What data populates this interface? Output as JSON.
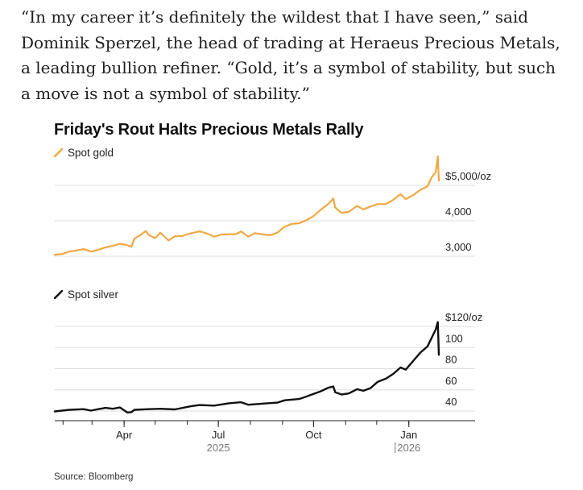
{
  "quote_text": "“In my career it’s definitely the wildest that I have seen,” said Dominik Sperzel, the head of trading at Heraeus Precious Metals, a leading bullion refiner. “Gold, it’s a symbol of stability, but such a move is not a symbol of stability.”",
  "source": "Source: Bloomberg",
  "colors": {
    "gold": "#f0a843",
    "silver": "#111111",
    "grid": "#dddddd"
  },
  "chart_data": {
    "type": "line",
    "title": "Friday's Rout Halts Precious Metals Rally",
    "x_start": "2025-01-24",
    "x_end": "2026-01-30",
    "x_ticks": [
      {
        "date": "2025-04-01",
        "label": "Apr"
      },
      {
        "date": "2025-07-01",
        "label": "Jul"
      },
      {
        "date": "2025-10-01",
        "label": "Oct"
      },
      {
        "date": "2026-01-01",
        "label": "Jan"
      }
    ],
    "year_labels": [
      {
        "date": "2025-07-01",
        "label": "2025"
      },
      {
        "date": "2026-01-01",
        "label": "2026"
      }
    ],
    "panels": [
      {
        "name": "Spot gold",
        "legend": "Spot gold",
        "color": "#f0a843",
        "ylim": [
          2700,
          5200
        ],
        "y_ticks": [
          {
            "value": 5000,
            "label": "$5,000/oz"
          },
          {
            "value": 4000,
            "label": "4,000"
          },
          {
            "value": 3000,
            "label": "3,000"
          }
        ],
        "series": [
          [
            "2025-01-24",
            2770
          ],
          [
            "2025-01-31",
            2790
          ],
          [
            "2025-02-07",
            2860
          ],
          [
            "2025-02-14",
            2890
          ],
          [
            "2025-02-21",
            2930
          ],
          [
            "2025-02-28",
            2860
          ],
          [
            "2025-03-07",
            2910
          ],
          [
            "2025-03-14",
            2980
          ],
          [
            "2025-03-21",
            3020
          ],
          [
            "2025-03-28",
            3080
          ],
          [
            "2025-04-04",
            3040
          ],
          [
            "2025-04-08",
            2990
          ],
          [
            "2025-04-11",
            3230
          ],
          [
            "2025-04-17",
            3330
          ],
          [
            "2025-04-22",
            3440
          ],
          [
            "2025-04-25",
            3320
          ],
          [
            "2025-05-01",
            3240
          ],
          [
            "2025-05-06",
            3390
          ],
          [
            "2025-05-14",
            3170
          ],
          [
            "2025-05-20",
            3290
          ],
          [
            "2025-05-27",
            3300
          ],
          [
            "2025-06-05",
            3380
          ],
          [
            "2025-06-13",
            3430
          ],
          [
            "2025-06-20",
            3370
          ],
          [
            "2025-06-27",
            3280
          ],
          [
            "2025-07-04",
            3340
          ],
          [
            "2025-07-11",
            3350
          ],
          [
            "2025-07-18",
            3350
          ],
          [
            "2025-07-23",
            3430
          ],
          [
            "2025-07-30",
            3280
          ],
          [
            "2025-08-05",
            3380
          ],
          [
            "2025-08-12",
            3350
          ],
          [
            "2025-08-20",
            3320
          ],
          [
            "2025-08-27",
            3390
          ],
          [
            "2025-09-03",
            3560
          ],
          [
            "2025-09-10",
            3640
          ],
          [
            "2025-09-17",
            3660
          ],
          [
            "2025-09-24",
            3740
          ],
          [
            "2025-10-01",
            3860
          ],
          [
            "2025-10-08",
            4040
          ],
          [
            "2025-10-15",
            4200
          ],
          [
            "2025-10-20",
            4360
          ],
          [
            "2025-10-22",
            4100
          ],
          [
            "2025-10-28",
            3950
          ],
          [
            "2025-11-04",
            3980
          ],
          [
            "2025-11-12",
            4150
          ],
          [
            "2025-11-18",
            4050
          ],
          [
            "2025-11-25",
            4130
          ],
          [
            "2025-12-02",
            4200
          ],
          [
            "2025-12-10",
            4200
          ],
          [
            "2025-12-17",
            4320
          ],
          [
            "2025-12-24",
            4480
          ],
          [
            "2025-12-29",
            4340
          ],
          [
            "2026-01-05",
            4450
          ],
          [
            "2026-01-12",
            4600
          ],
          [
            "2026-01-19",
            4700
          ],
          [
            "2026-01-23",
            4950
          ],
          [
            "2026-01-27",
            5100
          ],
          [
            "2026-01-29",
            5550
          ],
          [
            "2026-01-30",
            4860
          ]
        ]
      },
      {
        "name": "Spot silver",
        "legend": "Spot silver",
        "color": "#111111",
        "ylim": [
          25,
          125
        ],
        "y_ticks": [
          {
            "value": 120,
            "label": "$120/oz"
          },
          {
            "value": 100,
            "label": "100"
          },
          {
            "value": 80,
            "label": "80"
          },
          {
            "value": 60,
            "label": "60"
          },
          {
            "value": 40,
            "label": "40"
          }
        ],
        "series": [
          [
            "2025-01-24",
            30.5
          ],
          [
            "2025-01-31",
            31.2
          ],
          [
            "2025-02-07",
            32.0
          ],
          [
            "2025-02-14",
            32.3
          ],
          [
            "2025-02-21",
            32.6
          ],
          [
            "2025-02-28",
            31.2
          ],
          [
            "2025-03-07",
            32.6
          ],
          [
            "2025-03-14",
            33.8
          ],
          [
            "2025-03-21",
            33.0
          ],
          [
            "2025-03-28",
            34.2
          ],
          [
            "2025-04-04",
            29.5
          ],
          [
            "2025-04-08",
            29.8
          ],
          [
            "2025-04-11",
            32.0
          ],
          [
            "2025-04-22",
            32.5
          ],
          [
            "2025-05-06",
            33.0
          ],
          [
            "2025-05-20",
            32.4
          ],
          [
            "2025-06-05",
            35.5
          ],
          [
            "2025-06-13",
            36.5
          ],
          [
            "2025-06-27",
            36.0
          ],
          [
            "2025-07-11",
            38.2
          ],
          [
            "2025-07-23",
            39.2
          ],
          [
            "2025-07-30",
            36.8
          ],
          [
            "2025-08-12",
            37.8
          ],
          [
            "2025-08-27",
            38.8
          ],
          [
            "2025-09-03",
            41.0
          ],
          [
            "2025-09-17",
            42.2
          ],
          [
            "2025-09-24",
            44.5
          ],
          [
            "2025-10-01",
            47.0
          ],
          [
            "2025-10-08",
            49.5
          ],
          [
            "2025-10-15",
            52.8
          ],
          [
            "2025-10-20",
            54.0
          ],
          [
            "2025-10-22",
            48.5
          ],
          [
            "2025-10-28",
            46.5
          ],
          [
            "2025-11-04",
            47.5
          ],
          [
            "2025-11-12",
            51.5
          ],
          [
            "2025-11-18",
            50.0
          ],
          [
            "2025-11-25",
            52.5
          ],
          [
            "2025-12-02",
            58.5
          ],
          [
            "2025-12-10",
            61.5
          ],
          [
            "2025-12-17",
            66.0
          ],
          [
            "2025-12-24",
            72.0
          ],
          [
            "2025-12-29",
            70.0
          ],
          [
            "2026-01-05",
            78.0
          ],
          [
            "2026-01-12",
            86.0
          ],
          [
            "2026-01-19",
            92.0
          ],
          [
            "2026-01-23",
            100.0
          ],
          [
            "2026-01-27",
            108.0
          ],
          [
            "2026-01-29",
            115.0
          ],
          [
            "2026-01-30",
            84.0
          ]
        ]
      }
    ]
  }
}
